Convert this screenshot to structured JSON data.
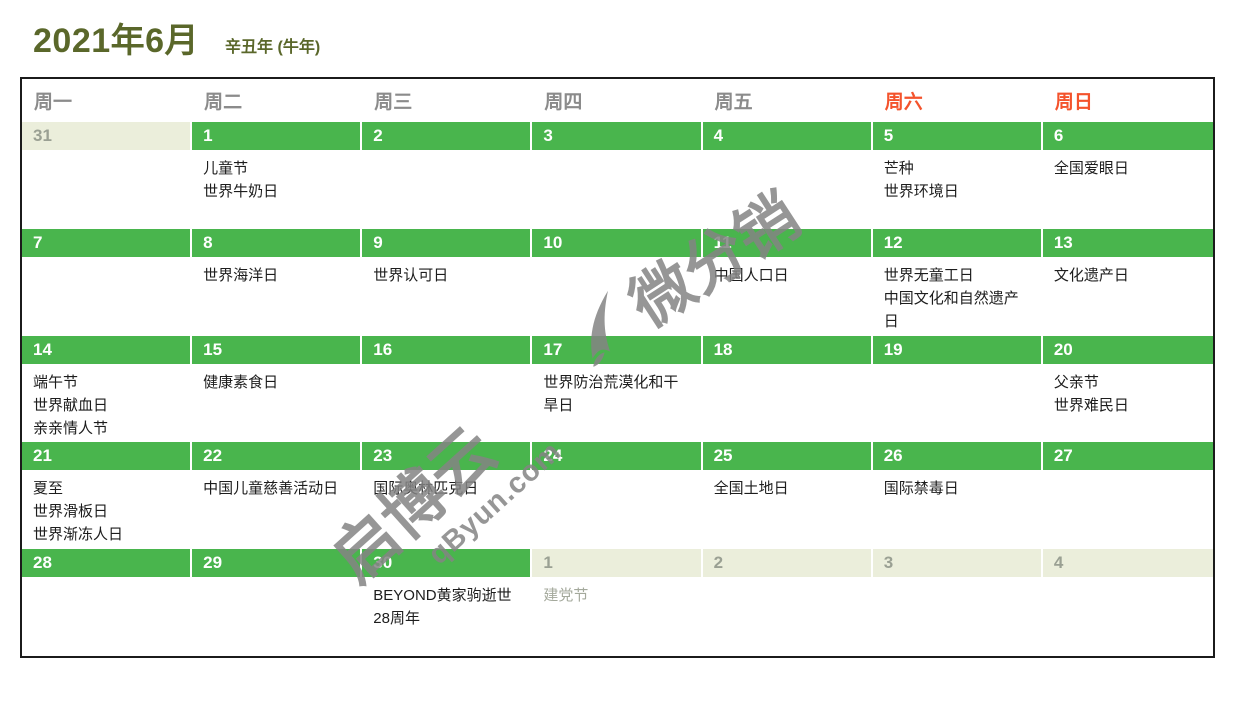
{
  "header": {
    "title": "2021年6月",
    "subtitle": "辛丑年 (牛年)"
  },
  "weekday_row": [
    {
      "label": "周一",
      "weekend": false
    },
    {
      "label": "周二",
      "weekend": false
    },
    {
      "label": "周三",
      "weekend": false
    },
    {
      "label": "周四",
      "weekend": false
    },
    {
      "label": "周五",
      "weekend": false
    },
    {
      "label": "周六",
      "weekend": true
    },
    {
      "label": "周日",
      "weekend": true
    }
  ],
  "weeks": [
    [
      {
        "day": "31",
        "other": true,
        "events": []
      },
      {
        "day": "1",
        "other": false,
        "events": [
          "儿童节",
          "世界牛奶日"
        ]
      },
      {
        "day": "2",
        "other": false,
        "events": []
      },
      {
        "day": "3",
        "other": false,
        "events": []
      },
      {
        "day": "4",
        "other": false,
        "events": []
      },
      {
        "day": "5",
        "other": false,
        "events": [
          "芒种",
          "世界环境日"
        ]
      },
      {
        "day": "6",
        "other": false,
        "events": [
          "全国爱眼日"
        ]
      }
    ],
    [
      {
        "day": "7",
        "other": false,
        "events": []
      },
      {
        "day": "8",
        "other": false,
        "events": [
          "世界海洋日"
        ]
      },
      {
        "day": "9",
        "other": false,
        "events": [
          "世界认可日"
        ]
      },
      {
        "day": "10",
        "other": false,
        "events": []
      },
      {
        "day": "11",
        "other": false,
        "events": [
          "中国人口日"
        ]
      },
      {
        "day": "12",
        "other": false,
        "events": [
          "世界无童工日",
          "中国文化和自然遗产日"
        ]
      },
      {
        "day": "13",
        "other": false,
        "events": [
          "文化遗产日"
        ]
      }
    ],
    [
      {
        "day": "14",
        "other": false,
        "events": [
          "端午节",
          "世界献血日",
          "亲亲情人节"
        ]
      },
      {
        "day": "15",
        "other": false,
        "events": [
          "健康素食日"
        ]
      },
      {
        "day": "16",
        "other": false,
        "events": []
      },
      {
        "day": "17",
        "other": false,
        "events": [
          "世界防治荒漠化和干旱日"
        ]
      },
      {
        "day": "18",
        "other": false,
        "events": []
      },
      {
        "day": "19",
        "other": false,
        "events": []
      },
      {
        "day": "20",
        "other": false,
        "events": [
          "父亲节",
          "世界难民日"
        ]
      }
    ],
    [
      {
        "day": "21",
        "other": false,
        "events": [
          "夏至",
          "世界滑板日",
          "世界渐冻人日"
        ]
      },
      {
        "day": "22",
        "other": false,
        "events": [
          "中国儿童慈善活动日"
        ]
      },
      {
        "day": "23",
        "other": false,
        "events": [
          "国际奥林匹克日"
        ]
      },
      {
        "day": "24",
        "other": false,
        "events": []
      },
      {
        "day": "25",
        "other": false,
        "events": [
          "全国土地日"
        ]
      },
      {
        "day": "26",
        "other": false,
        "events": [
          "国际禁毒日"
        ]
      },
      {
        "day": "27",
        "other": false,
        "events": []
      }
    ],
    [
      {
        "day": "28",
        "other": false,
        "events": []
      },
      {
        "day": "29",
        "other": false,
        "events": []
      },
      {
        "day": "30",
        "other": false,
        "events": [
          "BEYOND黄家驹逝世28周年"
        ]
      },
      {
        "day": "1",
        "other": true,
        "events": [
          "建党节"
        ]
      },
      {
        "day": "2",
        "other": true,
        "events": []
      },
      {
        "day": "3",
        "other": true,
        "events": []
      },
      {
        "day": "4",
        "other": true,
        "events": []
      }
    ]
  ],
  "watermarks": {
    "brand_center": "微分销",
    "brand_corner": "启博云",
    "brand_corner_url": "qByun.com"
  },
  "colors": {
    "title_olive": "#5a672a",
    "day_bar_green": "#49b54d",
    "other_month_bar": "#ebeedb",
    "weekend_header": "#f4532c",
    "weekday_header_gray": "#8b8b8b",
    "watermark_gray": "#848484",
    "table_border": "#1b1b1b"
  }
}
